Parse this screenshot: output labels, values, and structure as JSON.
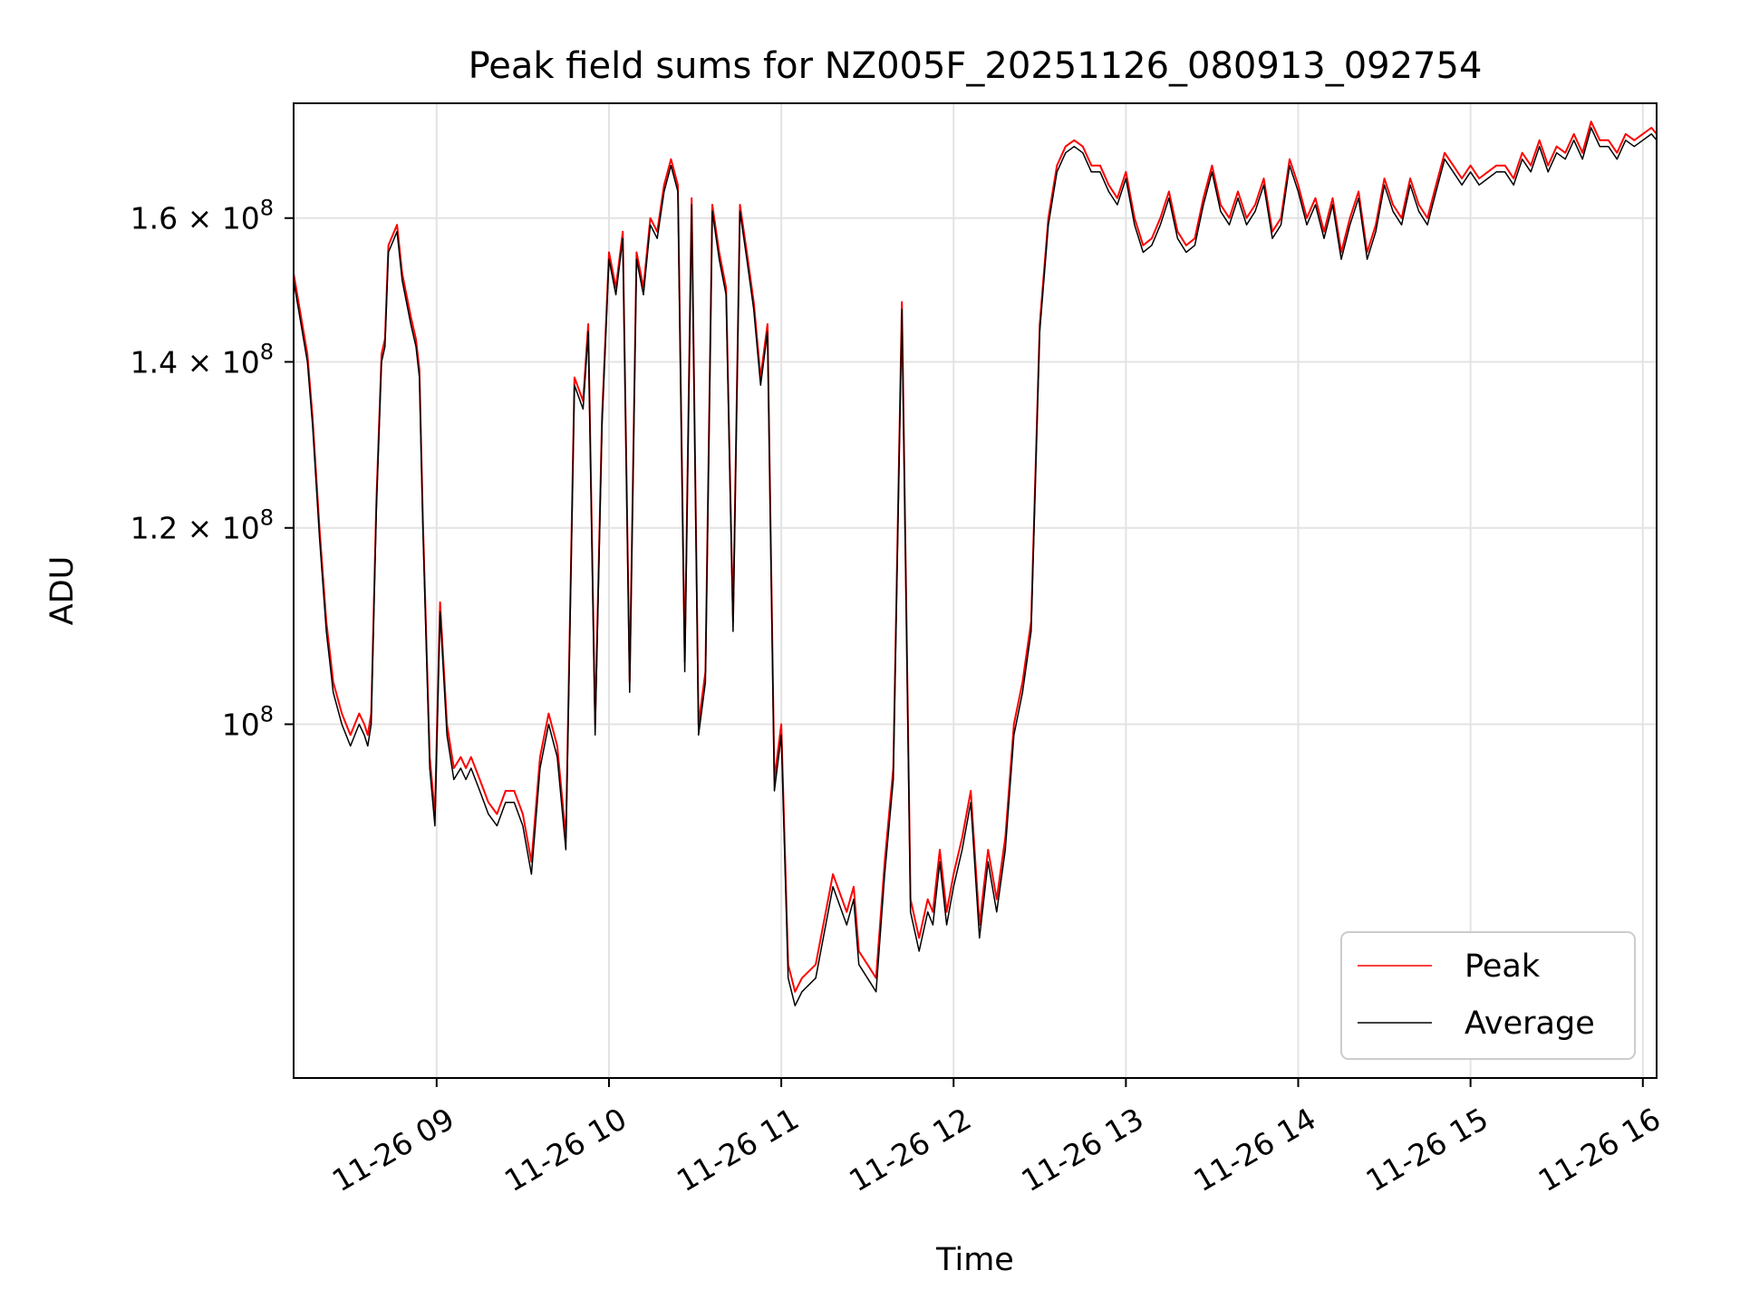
{
  "chart_data": {
    "type": "line",
    "title": "Peak field sums for NZ005F_20251126_080913_092754",
    "xlabel": "Time",
    "ylabel": "ADU",
    "yscale": "log",
    "xlim_hours": [
      8.17,
      16.08
    ],
    "ylim": [
      72000000,
      178000000
    ],
    "grid": true,
    "legend_position": "lower-right",
    "x_ticks": [
      {
        "value": 9,
        "label": "11-26 09"
      },
      {
        "value": 10,
        "label": "11-26 10"
      },
      {
        "value": 11,
        "label": "11-26 11"
      },
      {
        "value": 12,
        "label": "11-26 12"
      },
      {
        "value": 13,
        "label": "11-26 13"
      },
      {
        "value": 14,
        "label": "11-26 14"
      },
      {
        "value": 15,
        "label": "11-26 15"
      },
      {
        "value": 16,
        "label": "11-26 16"
      }
    ],
    "y_ticks": [
      {
        "value": 100000000,
        "mantissa": "",
        "exponent": "8"
      },
      {
        "value": 120000000,
        "mantissa": "1.2",
        "exponent": "8"
      },
      {
        "value": 140000000,
        "mantissa": "1.4",
        "exponent": "8"
      },
      {
        "value": 160000000,
        "mantissa": "1.6",
        "exponent": "8"
      }
    ],
    "series": [
      {
        "name": "Peak",
        "color": "#ff0000",
        "x": [
          8.17,
          8.25,
          8.28,
          8.32,
          8.36,
          8.4,
          8.45,
          8.5,
          8.55,
          8.58,
          8.6,
          8.62,
          8.65,
          8.68,
          8.7,
          8.72,
          8.77,
          8.8,
          8.85,
          8.88,
          8.9,
          8.92,
          8.96,
          8.99,
          9.02,
          9.06,
          9.1,
          9.14,
          9.17,
          9.2,
          9.25,
          9.3,
          9.35,
          9.4,
          9.45,
          9.5,
          9.55,
          9.6,
          9.65,
          9.7,
          9.75,
          9.8,
          9.85,
          9.88,
          9.92,
          9.96,
          10.0,
          10.04,
          10.08,
          10.12,
          10.16,
          10.2,
          10.24,
          10.28,
          10.32,
          10.36,
          10.4,
          10.44,
          10.48,
          10.52,
          10.56,
          10.6,
          10.64,
          10.68,
          10.72,
          10.76,
          10.8,
          10.84,
          10.88,
          10.92,
          10.96,
          11.0,
          11.04,
          11.08,
          11.12,
          11.2,
          11.3,
          11.38,
          11.42,
          11.45,
          11.5,
          11.55,
          11.6,
          11.65,
          11.7,
          11.75,
          11.8,
          11.85,
          11.88,
          11.92,
          11.96,
          12.0,
          12.05,
          12.1,
          12.15,
          12.2,
          12.25,
          12.3,
          12.35,
          12.4,
          12.45,
          12.5,
          12.55,
          12.6,
          12.65,
          12.7,
          12.75,
          12.8,
          12.85,
          12.9,
          12.95,
          13.0,
          13.05,
          13.1,
          13.15,
          13.2,
          13.25,
          13.3,
          13.35,
          13.4,
          13.45,
          13.5,
          13.55,
          13.6,
          13.65,
          13.7,
          13.75,
          13.8,
          13.85,
          13.9,
          13.95,
          14.0,
          14.05,
          14.1,
          14.15,
          14.2,
          14.25,
          14.3,
          14.35,
          14.4,
          14.45,
          14.5,
          14.55,
          14.6,
          14.65,
          14.7,
          14.75,
          14.8,
          14.85,
          14.9,
          14.95,
          15.0,
          15.05,
          15.1,
          15.15,
          15.2,
          15.25,
          15.3,
          15.35,
          15.4,
          15.45,
          15.5,
          15.55,
          15.6,
          15.65,
          15.7,
          15.75,
          15.8,
          15.85,
          15.9,
          15.95,
          16.0,
          16.05,
          16.08
        ],
        "values": [
          152,
          141,
          133,
          120,
          110,
          104,
          101,
          99,
          101,
          100,
          99,
          101,
          123,
          141,
          143,
          156,
          159,
          152,
          146,
          143,
          139,
          121,
          97,
          92,
          112,
          100,
          96,
          97,
          96,
          97,
          95,
          93,
          92,
          94,
          94,
          92,
          88,
          97,
          101,
          98,
          90,
          138,
          135,
          145,
          100,
          133,
          155,
          150,
          158,
          104,
          155,
          150,
          160,
          158,
          165,
          169,
          165,
          106,
          163,
          100,
          105,
          162,
          155,
          150,
          110,
          162,
          155,
          148,
          138,
          145,
          95,
          100,
          80,
          78,
          79,
          80,
          87,
          84,
          86,
          81,
          80,
          79,
          88,
          96,
          148,
          85,
          82,
          85,
          84,
          89,
          84,
          87,
          90,
          94,
          83,
          89,
          85,
          90,
          100,
          104,
          110,
          145,
          160,
          168,
          171,
          172,
          171,
          168,
          168,
          165,
          163,
          167,
          160,
          156,
          157,
          160,
          164,
          158,
          156,
          157,
          163,
          168,
          162,
          160,
          164,
          160,
          162,
          166,
          158,
          160,
          169,
          165,
          160,
          163,
          158,
          163,
          155,
          160,
          164,
          155,
          159,
          166,
          162,
          160,
          166,
          162,
          160,
          165,
          170,
          168,
          166,
          168,
          166,
          167,
          168,
          168,
          166,
          170,
          168,
          172,
          168,
          171,
          170,
          173,
          170,
          175,
          172,
          172,
          170,
          173,
          172,
          173,
          174,
          173
        ],
        "scale": 1000000
      },
      {
        "name": "Average",
        "color": "#000000",
        "x": [
          8.17,
          8.25,
          8.28,
          8.32,
          8.36,
          8.4,
          8.45,
          8.5,
          8.55,
          8.58,
          8.6,
          8.62,
          8.65,
          8.68,
          8.7,
          8.72,
          8.77,
          8.8,
          8.85,
          8.88,
          8.9,
          8.92,
          8.96,
          8.99,
          9.02,
          9.06,
          9.1,
          9.14,
          9.17,
          9.2,
          9.25,
          9.3,
          9.35,
          9.4,
          9.45,
          9.5,
          9.55,
          9.6,
          9.65,
          9.7,
          9.75,
          9.8,
          9.85,
          9.88,
          9.92,
          9.96,
          10.0,
          10.04,
          10.08,
          10.12,
          10.16,
          10.2,
          10.24,
          10.28,
          10.32,
          10.36,
          10.4,
          10.44,
          10.48,
          10.52,
          10.56,
          10.6,
          10.64,
          10.68,
          10.72,
          10.76,
          10.8,
          10.84,
          10.88,
          10.92,
          10.96,
          11.0,
          11.04,
          11.08,
          11.12,
          11.2,
          11.3,
          11.38,
          11.42,
          11.45,
          11.5,
          11.55,
          11.6,
          11.65,
          11.7,
          11.75,
          11.8,
          11.85,
          11.88,
          11.92,
          11.96,
          12.0,
          12.05,
          12.1,
          12.15,
          12.2,
          12.25,
          12.3,
          12.35,
          12.4,
          12.45,
          12.5,
          12.55,
          12.6,
          12.65,
          12.7,
          12.75,
          12.8,
          12.85,
          12.9,
          12.95,
          13.0,
          13.05,
          13.1,
          13.15,
          13.2,
          13.25,
          13.3,
          13.35,
          13.4,
          13.45,
          13.5,
          13.55,
          13.6,
          13.65,
          13.7,
          13.75,
          13.8,
          13.85,
          13.9,
          13.95,
          14.0,
          14.05,
          14.1,
          14.15,
          14.2,
          14.25,
          14.3,
          14.35,
          14.4,
          14.45,
          14.5,
          14.55,
          14.6,
          14.65,
          14.7,
          14.75,
          14.8,
          14.85,
          14.9,
          14.95,
          15.0,
          15.05,
          15.1,
          15.15,
          15.2,
          15.25,
          15.3,
          15.35,
          15.4,
          15.45,
          15.5,
          15.55,
          15.6,
          15.65,
          15.7,
          15.75,
          15.8,
          15.85,
          15.9,
          15.95,
          16.0,
          16.05,
          16.08
        ],
        "values": [
          151,
          140,
          132,
          119,
          109,
          103,
          100,
          98,
          100,
          99,
          98,
          100,
          122,
          140,
          142,
          155,
          158,
          151,
          145,
          142,
          138,
          120,
          96,
          91,
          111,
          99,
          95,
          96,
          95,
          96,
          94,
          92,
          91,
          93,
          93,
          91,
          87,
          96,
          100,
          97,
          89,
          137,
          134,
          144,
          99,
          132,
          154,
          149,
          157,
          103,
          154,
          149,
          159,
          157,
          164,
          168,
          164,
          105,
          162,
          99,
          104,
          161,
          154,
          149,
          109,
          161,
          154,
          147,
          137,
          144,
          94,
          99,
          79,
          77,
          78,
          79,
          86,
          83,
          85,
          80,
          79,
          78,
          87,
          95,
          147,
          84,
          81,
          84,
          83,
          88,
          83,
          86,
          89,
          93,
          82,
          88,
          84,
          89,
          99,
          103,
          109,
          144,
          159,
          167,
          170,
          171,
          170,
          167,
          167,
          164,
          162,
          166,
          159,
          155,
          156,
          159,
          163,
          157,
          155,
          156,
          162,
          167,
          161,
          159,
          163,
          159,
          161,
          165,
          157,
          159,
          168,
          164,
          159,
          162,
          157,
          162,
          154,
          159,
          163,
          154,
          158,
          165,
          161,
          159,
          165,
          161,
          159,
          164,
          169,
          167,
          165,
          167,
          165,
          166,
          167,
          167,
          165,
          169,
          167,
          171,
          167,
          170,
          169,
          172,
          169,
          174,
          171,
          171,
          169,
          172,
          171,
          172,
          173,
          172
        ],
        "scale": 1000000
      }
    ]
  }
}
